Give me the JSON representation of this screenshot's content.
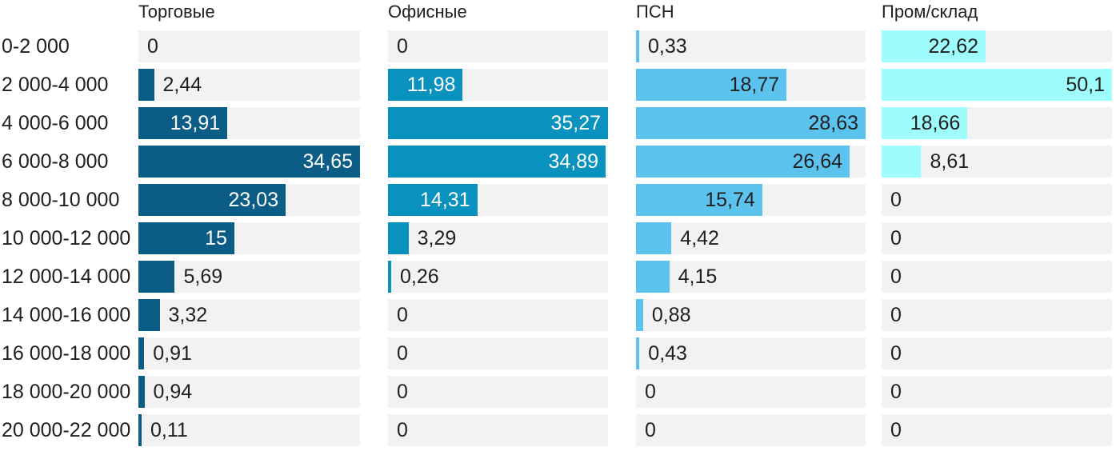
{
  "chart_data": {
    "type": "bar",
    "orientation": "horizontal",
    "title": "",
    "categories": [
      "0-2 000",
      "2 000-4 000",
      "4 000-6 000",
      "6 000-8 000",
      "8 000-10 000",
      "10 000-12 000",
      "12 000-14 000",
      "14 000-16 000",
      "16 000-18 000",
      "18 000-20 000",
      "20 000-22 000"
    ],
    "series": [
      {
        "name": "Торговые",
        "color": "#0c5d85",
        "values": [
          0,
          2.44,
          13.91,
          34.65,
          23.03,
          15,
          5.69,
          3.32,
          0.91,
          0.94,
          0.11
        ],
        "labels": [
          "0",
          "2,44",
          "13,91",
          "34,65",
          "23,03",
          "15",
          "5,69",
          "3,32",
          "0,91",
          "0,94",
          "0,11"
        ]
      },
      {
        "name": "Офисные",
        "color": "#0a92be",
        "values": [
          0,
          11.98,
          35.27,
          34.89,
          14.31,
          3.29,
          0.26,
          0,
          0,
          0,
          0
        ],
        "labels": [
          "0",
          "11,98",
          "35,27",
          "34,89",
          "14,31",
          "3,29",
          "0,26",
          "0",
          "0",
          "0",
          "0"
        ]
      },
      {
        "name": "ПСН",
        "color": "#5cc3ee",
        "values": [
          0.33,
          18.77,
          28.63,
          26.64,
          15.74,
          4.42,
          4.15,
          0.88,
          0.43,
          0,
          0
        ],
        "labels": [
          "0,33",
          "18,77",
          "28,63",
          "26,64",
          "15,74",
          "4,42",
          "4,15",
          "0,88",
          "0,43",
          "0",
          "0"
        ]
      },
      {
        "name": "Пром/склад",
        "color": "#9efcfc",
        "values": [
          22.62,
          50.1,
          18.66,
          8.61,
          0,
          0,
          0,
          0,
          0,
          0,
          0
        ],
        "labels": [
          "22,62",
          "50,1",
          "18,66",
          "8,61",
          "0",
          "0",
          "0",
          "0",
          "0",
          "0",
          "0"
        ]
      }
    ],
    "column_max": [
      34.65,
      35.27,
      28.63,
      50.1
    ],
    "inside_label_colors": [
      "#ffffff",
      "#ffffff",
      "#1f1f1f",
      "#1f1f1f"
    ],
    "track_color": "#f2f2f2",
    "text_color": "#1f1f1f",
    "legend_position": "top-column-headers",
    "grid": false,
    "inside_label_threshold_pct": 25
  }
}
